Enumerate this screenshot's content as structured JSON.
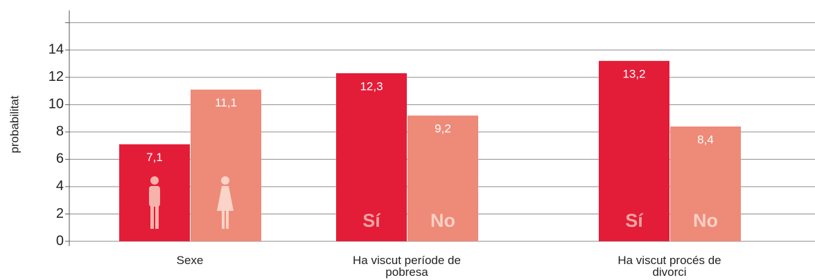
{
  "chart_data": {
    "type": "bar",
    "y_label": "probabilitat",
    "categories": [
      "Sexe",
      "Ha viscut període de pobresa",
      "Ha viscut procés de divorci"
    ],
    "series": [
      {
        "color": "#e31d38",
        "values": [
          7.1,
          12.3,
          13.2
        ],
        "value_labels": [
          "7,1",
          "12,3",
          "13,2"
        ],
        "inner_labels": [
          null,
          "Sí",
          "Sí"
        ],
        "inner_color": "#f5a3a3"
      },
      {
        "color": "#ee8a78",
        "values": [
          11.1,
          9.2,
          8.4
        ],
        "value_labels": [
          "11,1",
          "9,2",
          "8,4"
        ],
        "inner_labels": [
          null,
          "No",
          "No"
        ],
        "inner_color": "#fbd0c6"
      }
    ],
    "ylim": [
      0,
      17
    ],
    "yticks": [
      0,
      2,
      4,
      6,
      8,
      10,
      12,
      14,
      {
        "value": 16,
        "label": null
      }
    ],
    "grid": true
  }
}
